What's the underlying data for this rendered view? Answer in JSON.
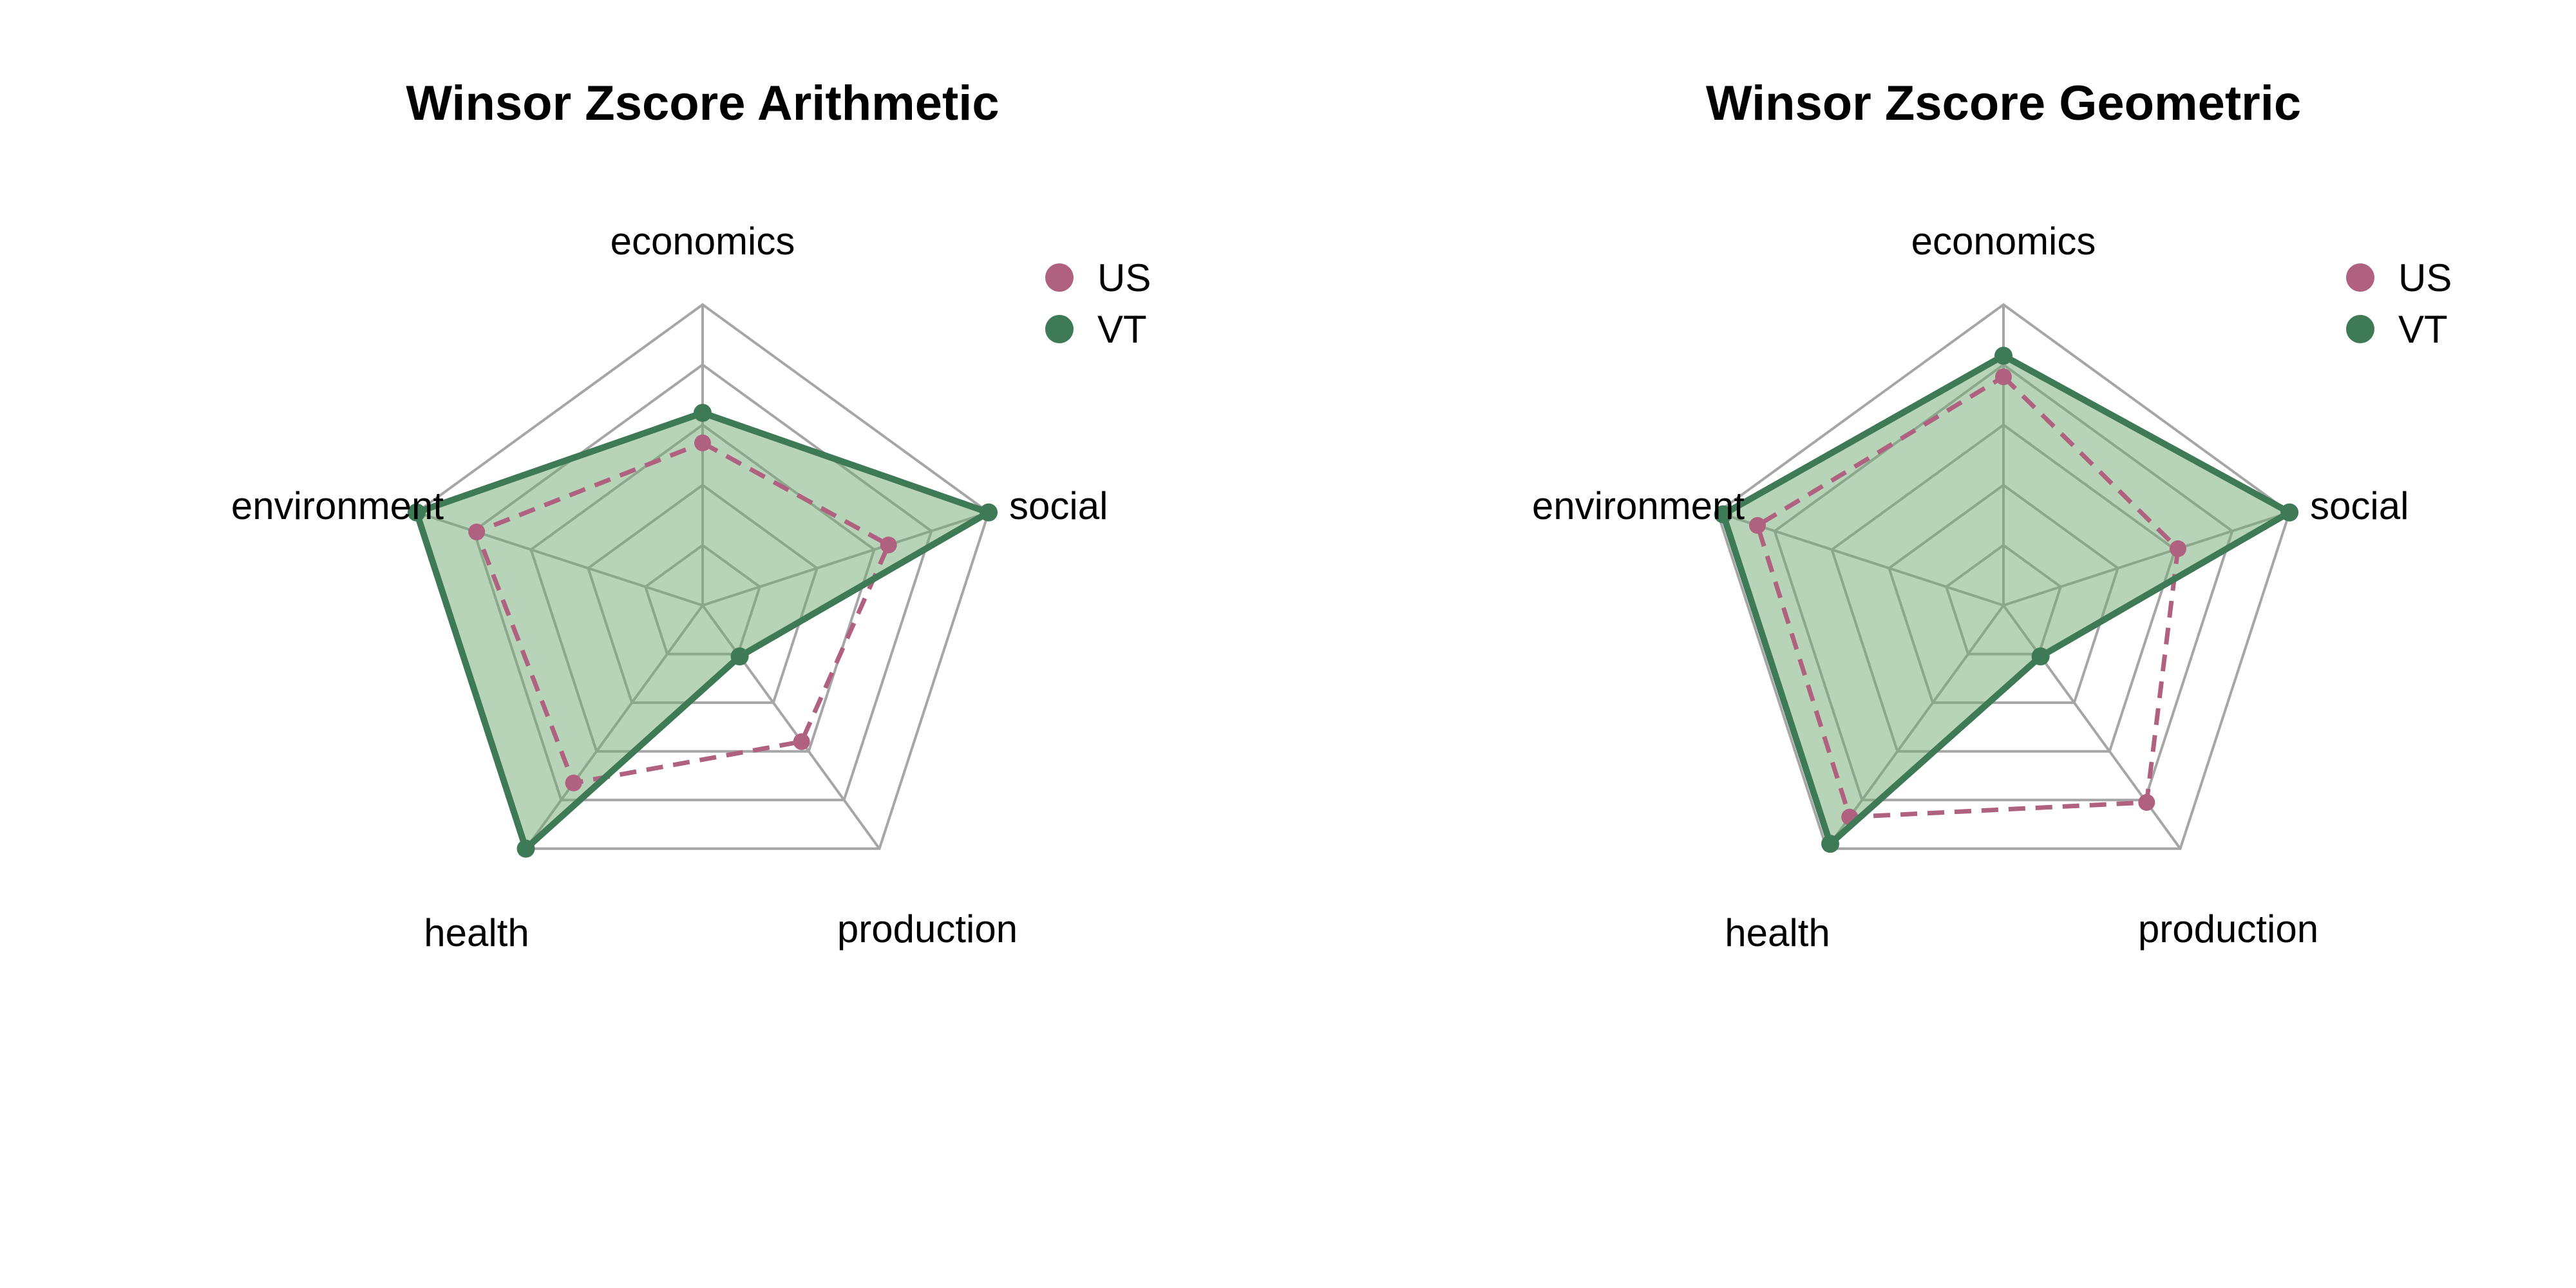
{
  "colors": {
    "US": "#b0617f",
    "VT": "#3f7a57",
    "VT_fill": "#6fa972",
    "grid": "#a6a6a6"
  },
  "chart_data": [
    {
      "type": "radar",
      "title": "Winsor Zscore Arithmetic",
      "axes": [
        "economics",
        "social",
        "production",
        "health",
        "environment"
      ],
      "range": [
        0,
        1
      ],
      "grid_levels": 5,
      "legend_position": "top-right",
      "series": [
        {
          "name": "US",
          "line": "dashed",
          "values": [
            0.54,
            0.65,
            0.56,
            0.73,
            0.79
          ]
        },
        {
          "name": "VT",
          "line": "solid",
          "filled": true,
          "values": [
            0.64,
            1.0,
            0.21,
            1.0,
            1.0
          ]
        }
      ]
    },
    {
      "type": "radar",
      "title": "Winsor Zscore Geometric",
      "axes": [
        "economics",
        "social",
        "production",
        "health",
        "environment"
      ],
      "range": [
        0,
        1
      ],
      "grid_levels": 5,
      "legend_position": "top-right",
      "series": [
        {
          "name": "US",
          "line": "dashed",
          "values": [
            0.76,
            0.61,
            0.81,
            0.87,
            0.86
          ]
        },
        {
          "name": "VT",
          "line": "solid",
          "filled": true,
          "values": [
            0.83,
            1.0,
            0.21,
            0.98,
            0.98
          ]
        }
      ]
    }
  ]
}
